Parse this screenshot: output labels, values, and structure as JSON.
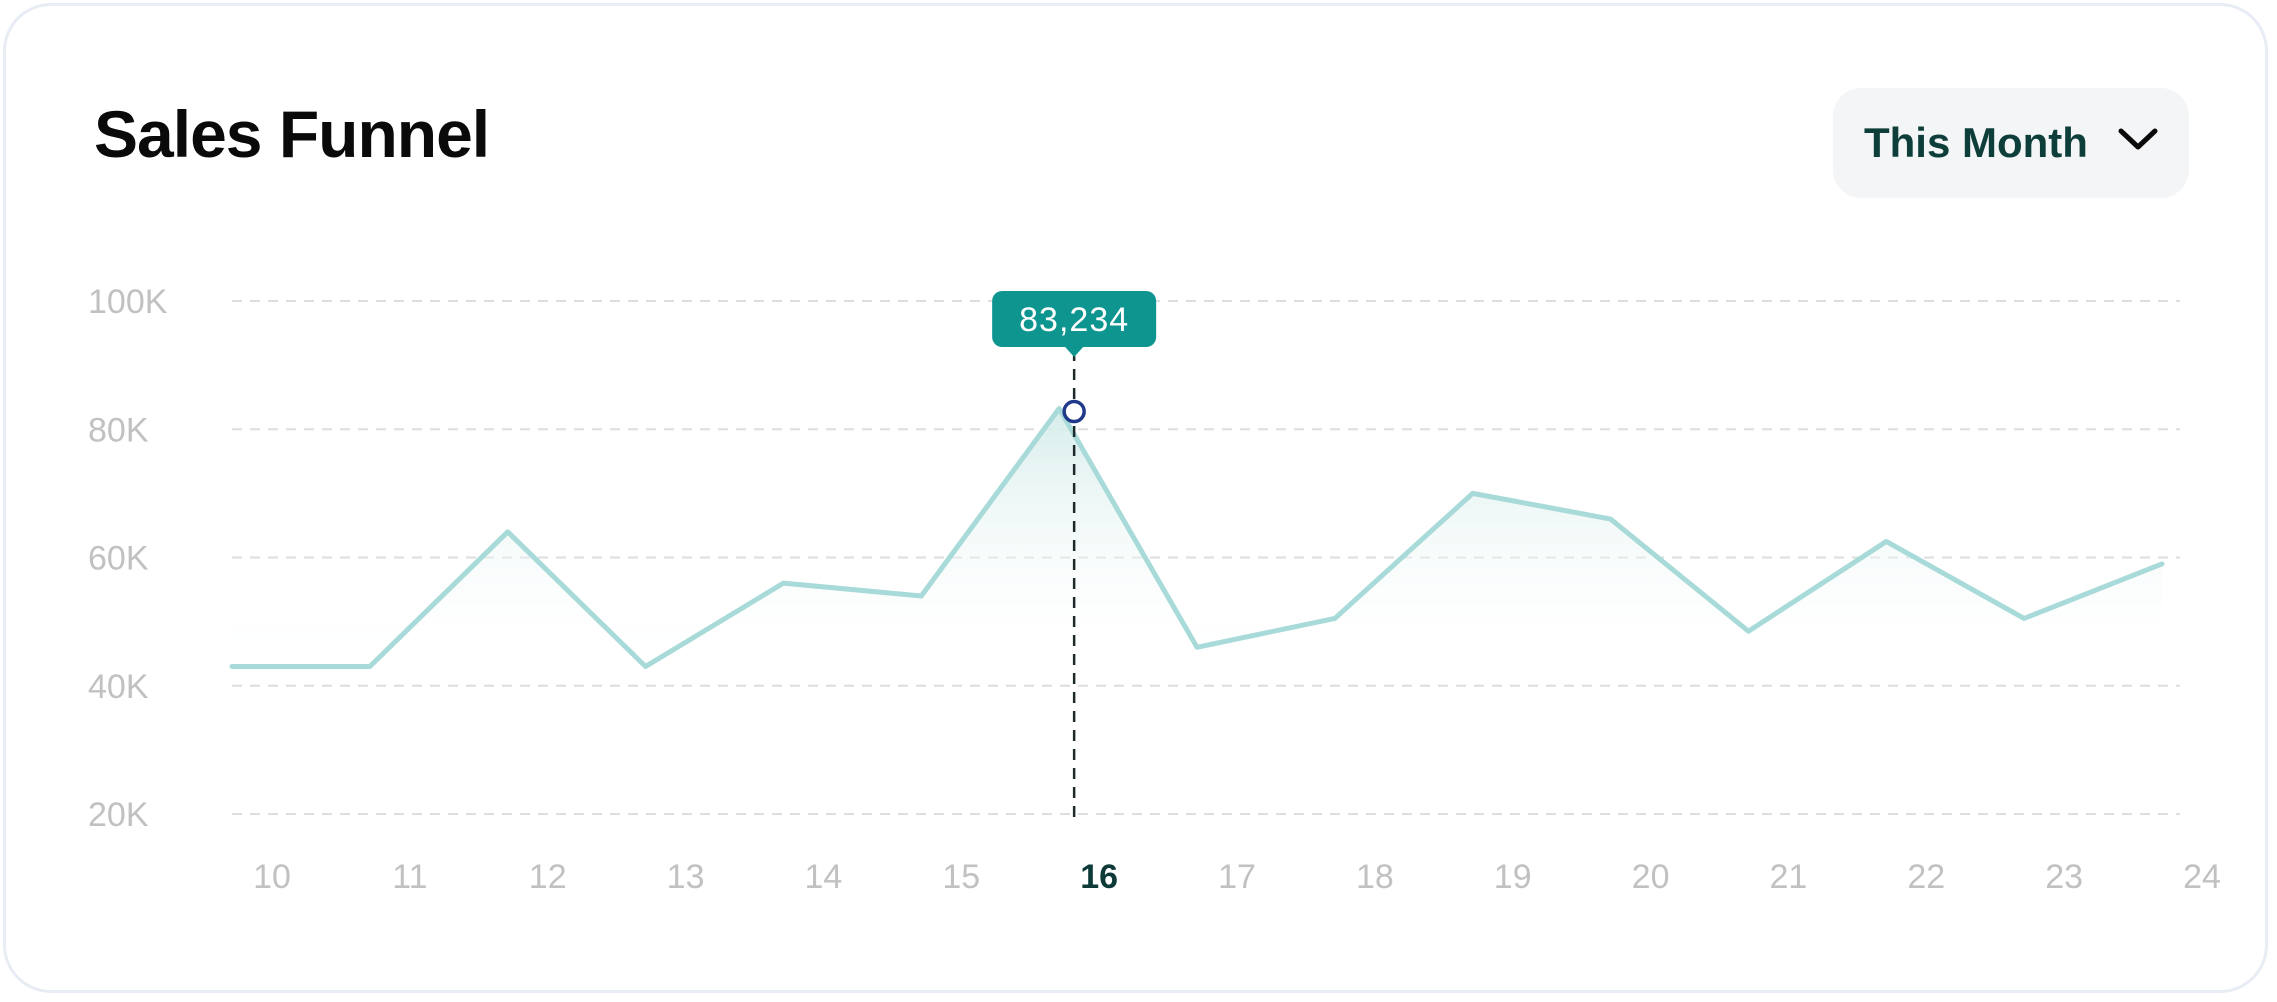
{
  "header": {
    "title": "Sales Funnel",
    "period_label": "This Month",
    "period_icon": "chevron-down-icon"
  },
  "colors": {
    "line": "#a7dad8",
    "area_top": "#d4ecea",
    "tooltip_bg": "#0e958f",
    "marker_stroke": "#1f3a8a",
    "grid": "#dedede",
    "active_tick": "#0e3b38"
  },
  "chart_data": {
    "type": "area",
    "title": "Sales Funnel",
    "x": [
      "10",
      "11",
      "12",
      "13",
      "14",
      "15",
      "16",
      "17",
      "18",
      "19",
      "20",
      "21",
      "22",
      "23",
      "24"
    ],
    "series": [
      {
        "values": [
          43000,
          43000,
          64000,
          43000,
          56000,
          54000,
          83234,
          46000,
          50500,
          70000,
          66000,
          48500,
          62500,
          50500,
          59000
        ]
      }
    ],
    "y_ticks": [
      "100K",
      "80K",
      "60K",
      "40K",
      "20K"
    ],
    "ylim": [
      20000,
      100000
    ],
    "grid": true,
    "highlight": {
      "x": "16",
      "label": "83,234"
    }
  }
}
